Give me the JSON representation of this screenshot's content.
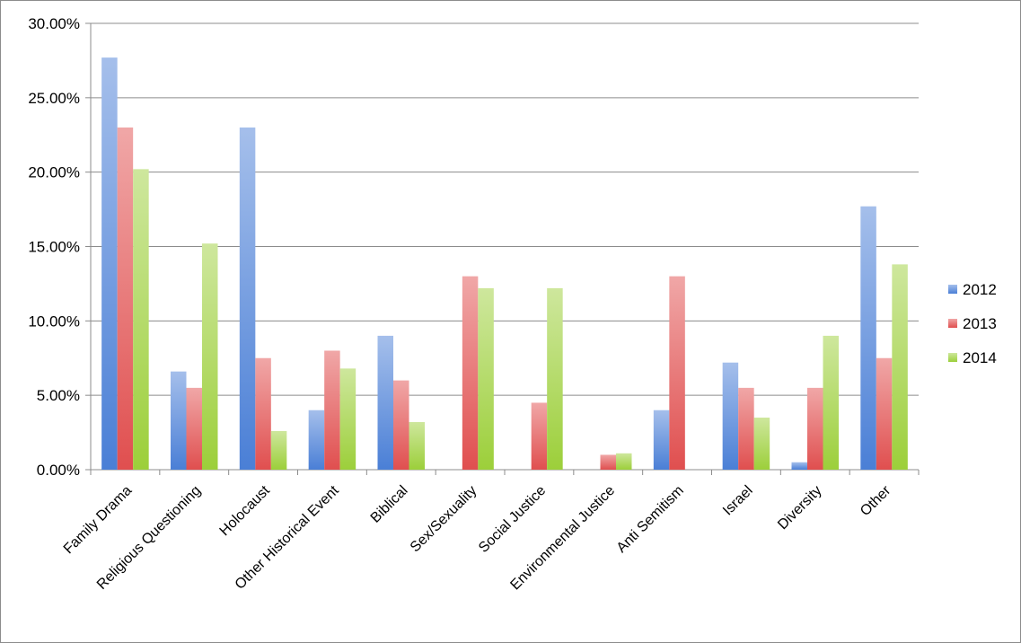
{
  "chart_data": {
    "type": "bar",
    "categories": [
      "Family Drama",
      "Religious Questioning",
      "Holocaust",
      "Other Historical Event",
      "Biblical",
      "Sex/Sexuality",
      "Social Justice",
      "Environmental Justice",
      "Anti Semitism",
      "Israel",
      "Diversity",
      "Other"
    ],
    "series": [
      {
        "name": "2012",
        "color": "#4a7fd6",
        "values": [
          27.7,
          6.6,
          23.0,
          4.0,
          9.0,
          0,
          0,
          0,
          4.0,
          7.2,
          0.5,
          17.7
        ]
      },
      {
        "name": "2013",
        "color": "#e04f4f",
        "values": [
          23.0,
          5.5,
          7.5,
          8.0,
          6.0,
          13.0,
          4.5,
          1.0,
          13.0,
          5.5,
          5.5,
          7.5
        ]
      },
      {
        "name": "2014",
        "color": "#9ccf3a",
        "values": [
          20.2,
          15.2,
          2.6,
          6.8,
          3.2,
          12.2,
          12.2,
          1.1,
          0,
          3.5,
          9.0,
          13.8
        ]
      }
    ],
    "yticks": [
      "0.00%",
      "5.00%",
      "10.00%",
      "15.00%",
      "20.00%",
      "25.00%",
      "30.00%"
    ],
    "ylim": [
      0,
      30
    ],
    "grid": true,
    "legend_position": "right",
    "title": "",
    "xlabel": "",
    "ylabel": ""
  }
}
